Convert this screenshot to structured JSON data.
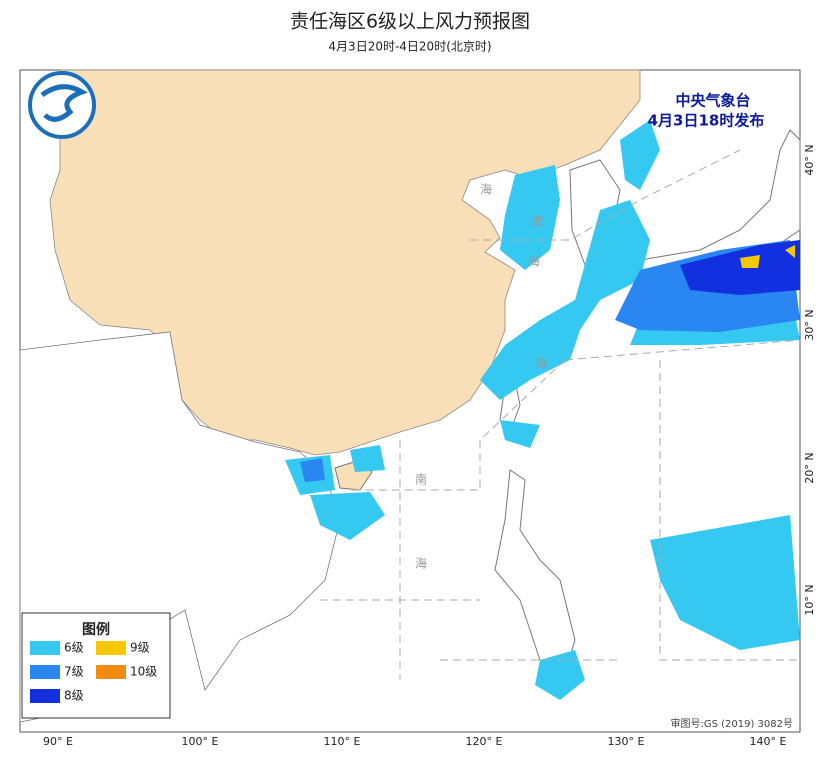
{
  "header": {
    "title": "责任海区6级以上风力预报图",
    "subtitle": "4月3日20时-4日20时(北京时)"
  },
  "issuer": {
    "name": "中央气象台",
    "time": "4月3日18时发布"
  },
  "legend": {
    "title": "图例",
    "items": [
      {
        "label": "6级",
        "color": "#35c8f0"
      },
      {
        "label": "9级",
        "color": "#f5c800"
      },
      {
        "label": "7级",
        "color": "#2a86f0"
      },
      {
        "label": "10级",
        "color": "#f08c10"
      },
      {
        "label": "8级",
        "color": "#1230e0"
      }
    ]
  },
  "longitude_labels": [
    "90° E",
    "100° E",
    "110° E",
    "120° E",
    "130° E",
    "140° E"
  ],
  "latitude_labels": [
    "40° N",
    "30° N",
    "20° N",
    "10° N"
  ],
  "sea_labels": [
    "海",
    "黄",
    "海",
    "海",
    "南",
    "海"
  ],
  "map_approval": "审图号:GS (2019) 3082号"
}
